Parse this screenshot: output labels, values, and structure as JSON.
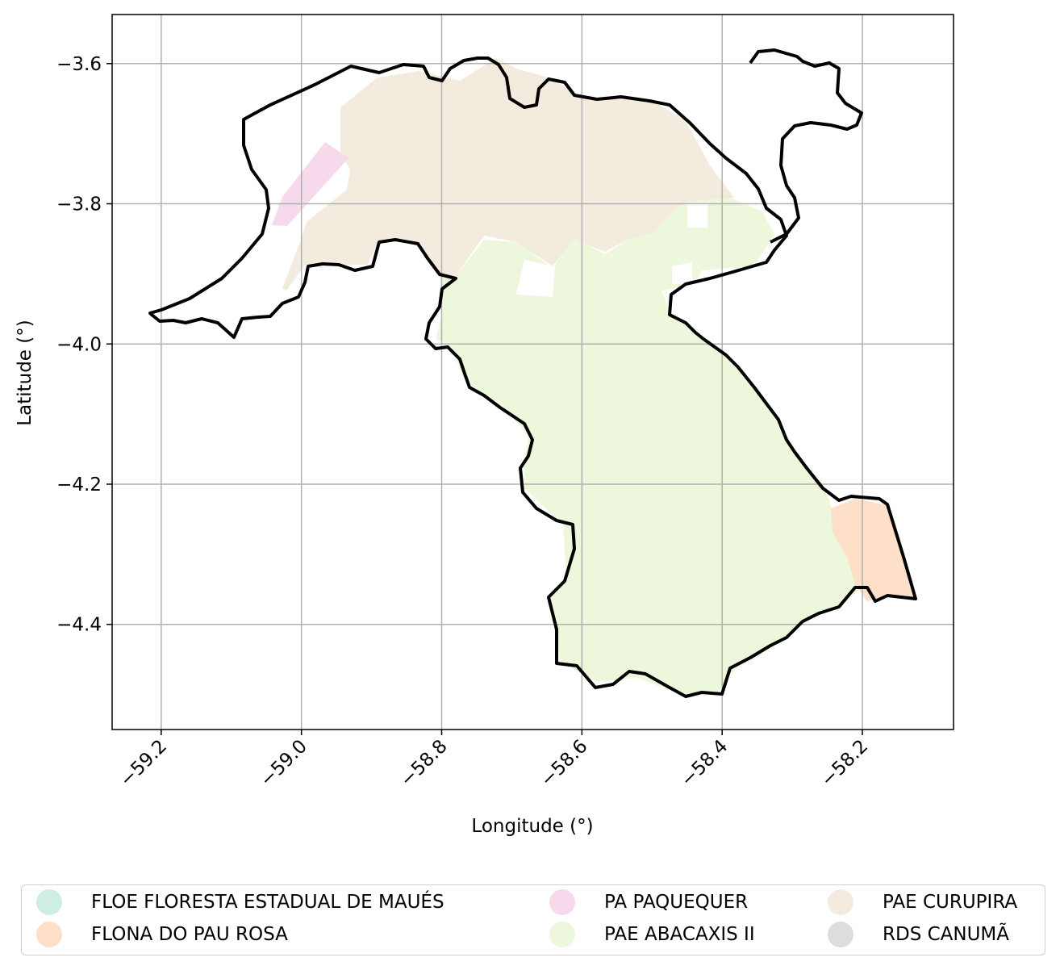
{
  "map": {
    "xlabel": "Longitude (°)",
    "ylabel": "Latitude (°)",
    "xlim": [
      -59.27,
      -58.07
    ],
    "ylim": [
      -4.55,
      -3.53
    ],
    "grid": true,
    "x_ticks": [
      {
        "value": -59.2,
        "label": "−59.2"
      },
      {
        "value": -59.0,
        "label": "−59.0"
      },
      {
        "value": -58.8,
        "label": "−58.8"
      },
      {
        "value": -58.6,
        "label": "−58.6"
      },
      {
        "value": -58.4,
        "label": "−58.4"
      },
      {
        "value": -58.2,
        "label": "−58.2"
      }
    ],
    "y_ticks": [
      {
        "value": -3.6,
        "label": "−3.6"
      },
      {
        "value": -3.8,
        "label": "−3.8"
      },
      {
        "value": -4.0,
        "label": "−4.0"
      },
      {
        "value": -4.2,
        "label": "−4.2"
      },
      {
        "value": -4.4,
        "label": "−4.4"
      }
    ],
    "boundary_color": "#000000",
    "legend_position": "below"
  },
  "legend": {
    "items": [
      {
        "label": "FLOE FLORESTA ESTADUAL DE MAUÉS",
        "color": "#cdeee0"
      },
      {
        "label": "FLONA DO PAU ROSA",
        "color": "#fddfca"
      },
      {
        "label": "PA PAQUEQUER",
        "color": "#f7d9ec"
      },
      {
        "label": "PAE ABACAXIS II",
        "color": "#edf7db"
      },
      {
        "label": "PAE CURUPIRA",
        "color": "#f4ebdf"
      },
      {
        "label": "RDS CANUMÃ",
        "color": "#dddddd"
      }
    ]
  }
}
